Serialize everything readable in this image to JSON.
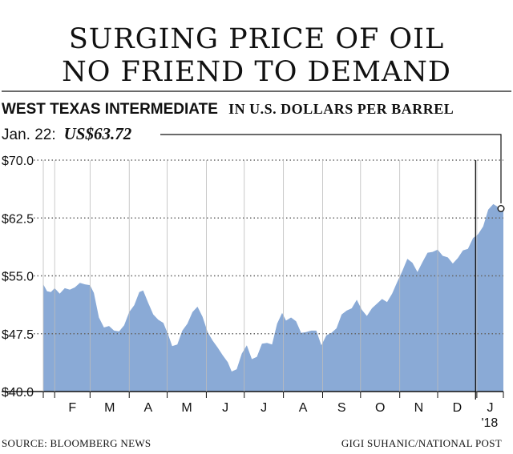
{
  "headline": {
    "line1": "SURGING PRICE OF OIL",
    "line2": "NO FRIEND TO DEMAND"
  },
  "section": {
    "title": "WEST TEXAS INTERMEDIATE",
    "unit": "IN U.S. DOLLARS PER BARREL"
  },
  "callout": {
    "date": "Jan. 22:",
    "value": "US$63.72"
  },
  "footer": {
    "source": "SOURCE: BLOOMBERG NEWS",
    "credit": "GIGI SUHANIC/NATIONAL POST"
  },
  "colors": {
    "area": "#8aaad6",
    "grid": "#666666",
    "text": "#111111"
  },
  "chart_data": {
    "type": "area",
    "title": "",
    "xlabel": "",
    "ylabel": "",
    "ylim": [
      40,
      70
    ],
    "yticks": [
      70,
      62.5,
      55,
      47.5,
      40
    ],
    "ytick_labels": [
      "$70.0",
      "$62.5",
      "$55.0",
      "$47.5",
      "$40.0"
    ],
    "xlim": [
      "2017-01-23",
      "2018-01-22"
    ],
    "months": [
      "2017-02-01",
      "2017-03-01",
      "2017-04-01",
      "2017-05-01",
      "2017-06-01",
      "2017-07-01",
      "2017-08-01",
      "2017-09-01",
      "2017-10-01",
      "2017-11-01",
      "2017-12-01",
      "2018-01-01"
    ],
    "month_labels": [
      "F",
      "M",
      "A",
      "M",
      "J",
      "J",
      "A",
      "S",
      "O",
      "N",
      "D",
      "J"
    ],
    "year_label": "'18",
    "year_date": "2018-01-01",
    "grid": true,
    "series": [
      {
        "x": [
          "2017-01-23",
          "2017-01-26",
          "2017-01-29",
          "2017-02-01",
          "2017-02-05",
          "2017-02-09",
          "2017-02-13",
          "2017-02-17",
          "2017-02-21",
          "2017-02-25",
          "2017-03-01",
          "2017-03-04",
          "2017-03-08",
          "2017-03-12",
          "2017-03-16",
          "2017-03-20",
          "2017-03-24",
          "2017-03-28",
          "2017-04-01",
          "2017-04-05",
          "2017-04-09",
          "2017-04-12",
          "2017-04-16",
          "2017-04-20",
          "2017-04-24",
          "2017-04-28",
          "2017-05-02",
          "2017-05-05",
          "2017-05-09",
          "2017-05-13",
          "2017-05-17",
          "2017-05-21",
          "2017-05-25",
          "2017-05-29",
          "2017-06-02",
          "2017-06-06",
          "2017-06-10",
          "2017-06-14",
          "2017-06-18",
          "2017-06-21",
          "2017-06-25",
          "2017-06-29",
          "2017-07-03",
          "2017-07-07",
          "2017-07-11",
          "2017-07-15",
          "2017-07-19",
          "2017-07-23",
          "2017-07-27",
          "2017-07-31",
          "2017-08-03",
          "2017-08-07",
          "2017-08-11",
          "2017-08-15",
          "2017-08-19",
          "2017-08-23",
          "2017-08-27",
          "2017-08-31",
          "2017-09-04",
          "2017-09-08",
          "2017-09-12",
          "2017-09-16",
          "2017-09-20",
          "2017-09-24",
          "2017-09-28",
          "2017-10-02",
          "2017-10-06",
          "2017-10-10",
          "2017-10-14",
          "2017-10-18",
          "2017-10-22",
          "2017-10-26",
          "2017-10-30",
          "2017-11-03",
          "2017-11-07",
          "2017-11-11",
          "2017-11-15",
          "2017-11-19",
          "2017-11-23",
          "2017-11-27",
          "2017-12-01",
          "2017-12-05",
          "2017-12-09",
          "2017-12-13",
          "2017-12-17",
          "2017-12-21",
          "2017-12-25",
          "2017-12-29",
          "2018-01-02",
          "2018-01-06",
          "2018-01-10",
          "2018-01-14",
          "2018-01-18",
          "2018-01-22"
        ],
        "values": [
          53.9,
          53.0,
          52.9,
          53.4,
          52.7,
          53.4,
          53.2,
          53.5,
          54.1,
          53.9,
          53.8,
          52.8,
          49.6,
          48.3,
          48.5,
          47.9,
          47.8,
          48.6,
          50.3,
          51.2,
          52.9,
          53.1,
          51.5,
          50.0,
          49.3,
          48.9,
          47.3,
          45.9,
          46.1,
          47.9,
          48.8,
          50.3,
          51.0,
          49.7,
          47.7,
          46.6,
          45.7,
          44.7,
          43.8,
          42.6,
          42.9,
          44.9,
          46.0,
          44.2,
          44.5,
          46.2,
          46.3,
          46.1,
          48.8,
          50.2,
          49.2,
          49.6,
          49.1,
          47.6,
          47.7,
          47.9,
          47.9,
          46.0,
          47.3,
          47.6,
          48.2,
          50.0,
          50.5,
          50.8,
          51.9,
          50.6,
          49.8,
          50.8,
          51.4,
          52.0,
          51.6,
          52.7,
          54.2,
          55.6,
          57.2,
          56.7,
          55.5,
          56.8,
          58.0,
          58.1,
          58.4,
          57.6,
          57.4,
          56.6,
          57.3,
          58.3,
          58.5,
          59.9,
          60.4,
          61.4,
          63.6,
          64.3,
          63.9,
          63.7
        ]
      }
    ],
    "highlight": {
      "x": "2018-01-22",
      "value": 63.72
    },
    "marker_line": {
      "x": "2017-12-31"
    }
  }
}
